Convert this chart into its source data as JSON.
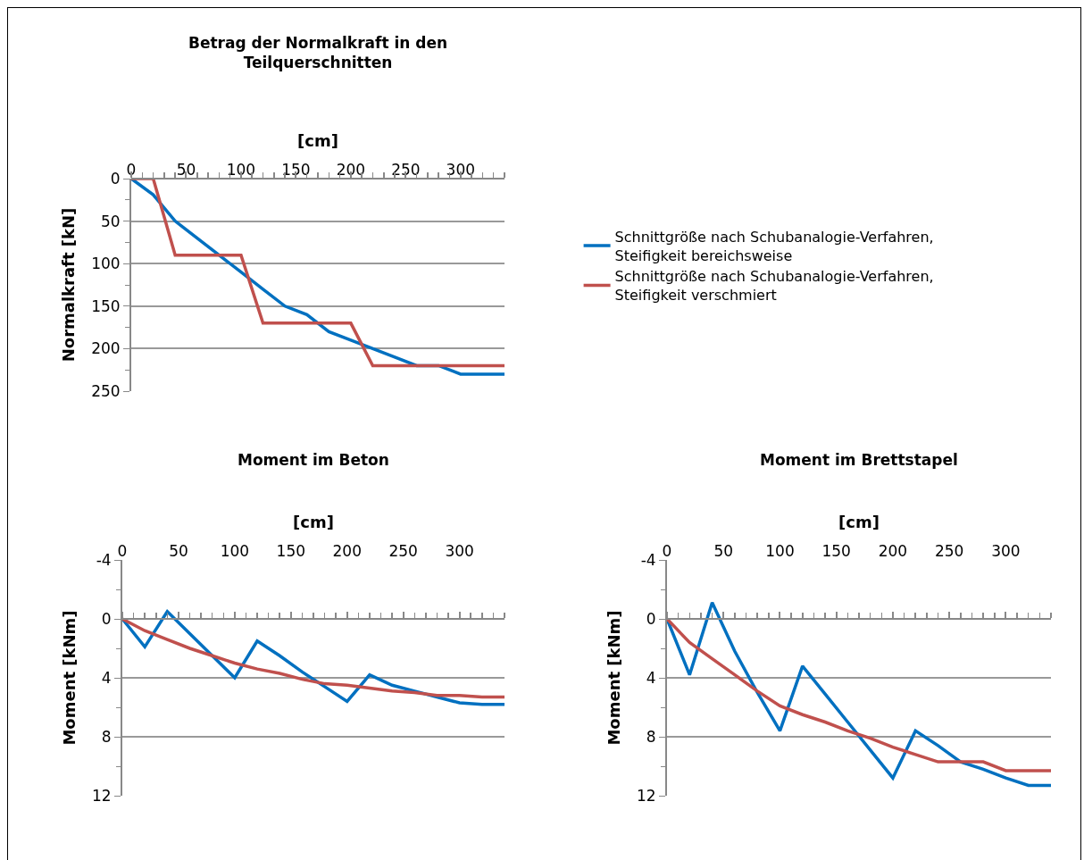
{
  "chart_data": [
    {
      "type": "line",
      "title": "Betrag der Normalkraft in den Teilquerschnitten",
      "xlabel": "[cm]",
      "ylabel": "Normalkraft [kN]",
      "x": [
        0,
        20,
        40,
        60,
        80,
        100,
        120,
        140,
        160,
        180,
        200,
        220,
        240,
        260,
        280,
        300,
        320,
        340
      ],
      "xlim": [
        0,
        340
      ],
      "xticks": [
        0,
        50,
        100,
        150,
        200,
        250,
        300
      ],
      "ylim": [
        250,
        0
      ],
      "yticks": [
        0,
        50,
        100,
        150,
        200,
        250
      ],
      "grid": "y",
      "legend": "right",
      "marker": "none",
      "line_style": "solid",
      "series": [
        {
          "name": "Schnittgröße nach Schubanalogie-Verfahren, Steifigkeit bereichsweise",
          "color": "#0070c0",
          "values": [
            0,
            19,
            50,
            70,
            90,
            110,
            130,
            150,
            160,
            180,
            190,
            200,
            210,
            220,
            220,
            230,
            230,
            230
          ]
        },
        {
          "name": "Schnittgröße nach Schubanalogie-Verfahren, Steifigkeit verschmiert",
          "color": "#c0504d",
          "values": [
            0,
            0,
            90,
            90,
            90,
            90,
            170,
            170,
            170,
            170,
            170,
            220,
            220,
            220,
            220,
            220,
            220,
            220
          ]
        }
      ]
    },
    {
      "type": "line",
      "title": "Moment im Beton",
      "xlabel": "[cm]",
      "ylabel": "Moment [kNm]",
      "x": [
        0,
        20,
        40,
        60,
        80,
        100,
        120,
        140,
        160,
        180,
        200,
        220,
        240,
        260,
        280,
        300,
        320,
        340
      ],
      "xlim": [
        0,
        340
      ],
      "xticks": [
        0,
        50,
        100,
        150,
        200,
        250,
        300
      ],
      "ylim": [
        12,
        -4
      ],
      "yticks": [
        -4,
        0,
        4,
        8,
        12
      ],
      "grid": "y",
      "marker": "none",
      "line_style": "solid",
      "series": [
        {
          "color": "#0070c0",
          "values": [
            0,
            1.9,
            -0.5,
            1.0,
            2.5,
            4.0,
            1.5,
            2.5,
            3.6,
            4.6,
            5.6,
            3.8,
            4.5,
            4.9,
            5.3,
            5.7,
            5.8,
            5.8
          ]
        },
        {
          "color": "#c0504d",
          "values": [
            0,
            0.8,
            1.4,
            2.0,
            2.5,
            3.0,
            3.4,
            3.7,
            4.1,
            4.4,
            4.5,
            4.7,
            4.9,
            5.0,
            5.2,
            5.2,
            5.3,
            5.3
          ]
        }
      ]
    },
    {
      "type": "line",
      "title": "Moment im Brettstapel",
      "xlabel": "[cm]",
      "ylabel": "Moment [kNm]",
      "x": [
        0,
        20,
        40,
        60,
        80,
        100,
        120,
        140,
        160,
        180,
        200,
        220,
        240,
        260,
        280,
        300,
        320,
        340
      ],
      "xlim": [
        0,
        340
      ],
      "xticks": [
        0,
        50,
        100,
        150,
        200,
        250,
        300
      ],
      "ylim": [
        12,
        -4
      ],
      "yticks": [
        -4,
        0,
        4,
        8,
        12
      ],
      "grid": "y",
      "marker": "none",
      "line_style": "solid",
      "series": [
        {
          "color": "#0070c0",
          "values": [
            0,
            3.8,
            -1.1,
            2.2,
            5.0,
            7.6,
            3.2,
            5.1,
            7.0,
            8.9,
            10.8,
            7.6,
            8.6,
            9.7,
            10.2,
            10.8,
            11.3,
            11.3
          ]
        },
        {
          "color": "#c0504d",
          "values": [
            0,
            1.6,
            2.7,
            3.8,
            4.9,
            5.9,
            6.5,
            7.0,
            7.6,
            8.1,
            8.7,
            9.2,
            9.7,
            9.7,
            9.7,
            10.3,
            10.3,
            10.3
          ]
        }
      ]
    }
  ]
}
